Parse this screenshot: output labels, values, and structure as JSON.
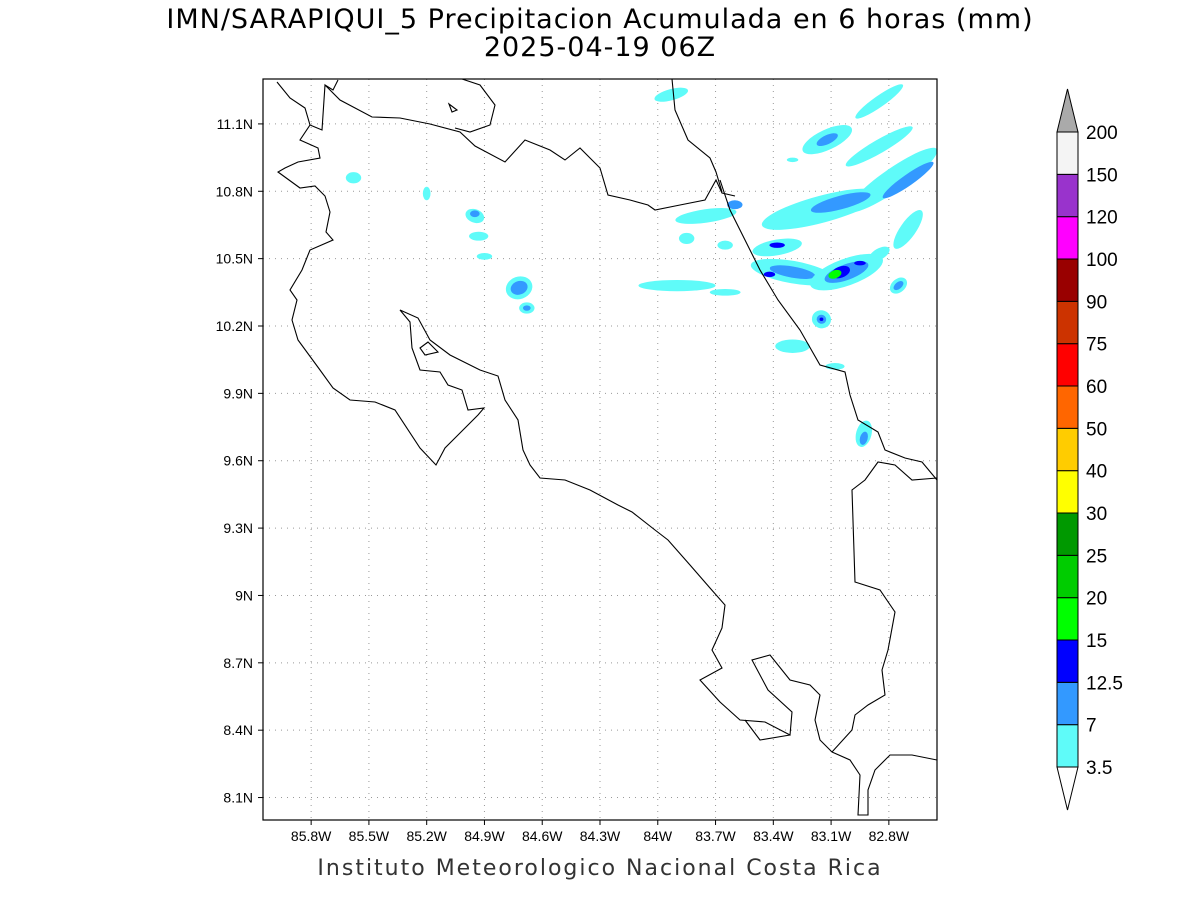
{
  "title": {
    "line1": "IMN/SARAPIQUI_5 Precipitacion Acumulada en 6 horas (mm)",
    "line2": "2025-04-19 06Z"
  },
  "footer": "Instituto Meteorologico Nacional Costa Rica",
  "map": {
    "lon_range": [
      -86.05,
      -82.55
    ],
    "lat_range": [
      8.0,
      11.3
    ],
    "x_ticks": [
      {
        "value": -85.8,
        "label": "85.8W"
      },
      {
        "value": -85.5,
        "label": "85.5W"
      },
      {
        "value": -85.2,
        "label": "85.2W"
      },
      {
        "value": -84.9,
        "label": "84.9W"
      },
      {
        "value": -84.6,
        "label": "84.6W"
      },
      {
        "value": -84.3,
        "label": "84.3W"
      },
      {
        "value": -84.0,
        "label": "84W"
      },
      {
        "value": -83.7,
        "label": "83.7W"
      },
      {
        "value": -83.4,
        "label": "83.4W"
      },
      {
        "value": -83.1,
        "label": "83.1W"
      },
      {
        "value": -82.8,
        "label": "82.8W"
      }
    ],
    "y_ticks": [
      {
        "value": 11.1,
        "label": "11.1N"
      },
      {
        "value": 10.8,
        "label": "10.8N"
      },
      {
        "value": 10.5,
        "label": "10.5N"
      },
      {
        "value": 10.2,
        "label": "10.2N"
      },
      {
        "value": 9.9,
        "label": "9.9N"
      },
      {
        "value": 9.6,
        "label": "9.6N"
      },
      {
        "value": 9.3,
        "label": "9.3N"
      },
      {
        "value": 9.0,
        "label": "9N"
      },
      {
        "value": 8.7,
        "label": "8.7N"
      },
      {
        "value": 8.4,
        "label": "8.4N"
      },
      {
        "value": 8.1,
        "label": "8.1N"
      }
    ],
    "grid": "dotted",
    "coastline_color": "#000000"
  },
  "colorbar": {
    "levels": [
      "3.5",
      "7",
      "12.5",
      "15",
      "20",
      "25",
      "30",
      "40",
      "50",
      "60",
      "75",
      "90",
      "100",
      "120",
      "150",
      "200"
    ],
    "colors": [
      "#5ffbf9",
      "#3399ff",
      "#0000ff",
      "#00ff00",
      "#00cc00",
      "#009900",
      "#ffff00",
      "#ffcc00",
      "#ff6600",
      "#ff0000",
      "#cc3300",
      "#990000",
      "#ff00ff",
      "#9933cc",
      "#f4f4f4",
      "#aaaaaa"
    ]
  },
  "precip_cells": [
    {
      "lon": -83.93,
      "lat": 11.23,
      "rx": 0.09,
      "ry": 0.025,
      "angle": -15,
      "level": 0
    },
    {
      "lon": -83.12,
      "lat": 11.03,
      "rx": 0.14,
      "ry": 0.045,
      "angle": -25,
      "level": 0
    },
    {
      "lon": -83.12,
      "lat": 11.03,
      "rx": 0.06,
      "ry": 0.02,
      "angle": -25,
      "level": 1
    },
    {
      "lon": -82.85,
      "lat": 11.0,
      "rx": 0.2,
      "ry": 0.03,
      "angle": -30,
      "level": 0
    },
    {
      "lon": -82.85,
      "lat": 11.2,
      "rx": 0.15,
      "ry": 0.025,
      "angle": -35,
      "level": 0
    },
    {
      "lon": -82.78,
      "lat": 10.85,
      "rx": 0.28,
      "ry": 0.05,
      "angle": -35,
      "level": 0
    },
    {
      "lon": -82.7,
      "lat": 10.85,
      "rx": 0.16,
      "ry": 0.025,
      "angle": -35,
      "level": 1
    },
    {
      "lon": -83.15,
      "lat": 10.72,
      "rx": 0.32,
      "ry": 0.06,
      "angle": -15,
      "level": 0
    },
    {
      "lon": -83.05,
      "lat": 10.75,
      "rx": 0.16,
      "ry": 0.03,
      "angle": -15,
      "level": 1
    },
    {
      "lon": -82.7,
      "lat": 10.63,
      "rx": 0.12,
      "ry": 0.035,
      "angle": -55,
      "level": 0
    },
    {
      "lon": -83.75,
      "lat": 10.69,
      "rx": 0.16,
      "ry": 0.03,
      "angle": -8,
      "level": 0
    },
    {
      "lon": -83.38,
      "lat": 10.55,
      "rx": 0.13,
      "ry": 0.035,
      "angle": -10,
      "level": 0
    },
    {
      "lon": -83.38,
      "lat": 10.56,
      "rx": 0.04,
      "ry": 0.012,
      "angle": 0,
      "level": 2
    },
    {
      "lon": -83.3,
      "lat": 10.44,
      "rx": 0.22,
      "ry": 0.05,
      "angle": 10,
      "level": 0
    },
    {
      "lon": -83.3,
      "lat": 10.44,
      "rx": 0.12,
      "ry": 0.025,
      "angle": 10,
      "level": 1
    },
    {
      "lon": -83.42,
      "lat": 10.43,
      "rx": 0.03,
      "ry": 0.012,
      "angle": 0,
      "level": 2
    },
    {
      "lon": -83.02,
      "lat": 10.44,
      "rx": 0.2,
      "ry": 0.06,
      "angle": -20,
      "level": 0
    },
    {
      "lon": -83.02,
      "lat": 10.44,
      "rx": 0.12,
      "ry": 0.035,
      "angle": -20,
      "level": 1
    },
    {
      "lon": -83.05,
      "lat": 10.44,
      "rx": 0.05,
      "ry": 0.025,
      "angle": -20,
      "level": 2
    },
    {
      "lon": -83.08,
      "lat": 10.43,
      "rx": 0.035,
      "ry": 0.018,
      "angle": -20,
      "level": 3
    },
    {
      "lon": -82.95,
      "lat": 10.48,
      "rx": 0.03,
      "ry": 0.01,
      "angle": 0,
      "level": 2
    },
    {
      "lon": -82.75,
      "lat": 10.38,
      "rx": 0.05,
      "ry": 0.03,
      "angle": -40,
      "level": 0
    },
    {
      "lon": -82.75,
      "lat": 10.38,
      "rx": 0.03,
      "ry": 0.015,
      "angle": -40,
      "level": 1
    },
    {
      "lon": -83.9,
      "lat": 10.38,
      "rx": 0.2,
      "ry": 0.025,
      "angle": 0,
      "level": 0
    },
    {
      "lon": -83.65,
      "lat": 10.35,
      "rx": 0.08,
      "ry": 0.015,
      "angle": 0,
      "level": 0
    },
    {
      "lon": -84.72,
      "lat": 10.37,
      "rx": 0.07,
      "ry": 0.05,
      "angle": -20,
      "level": 0
    },
    {
      "lon": -84.72,
      "lat": 10.37,
      "rx": 0.045,
      "ry": 0.03,
      "angle": -20,
      "level": 1
    },
    {
      "lon": -84.68,
      "lat": 10.28,
      "rx": 0.04,
      "ry": 0.025,
      "angle": 0,
      "level": 0
    },
    {
      "lon": -84.68,
      "lat": 10.28,
      "rx": 0.02,
      "ry": 0.012,
      "angle": 0,
      "level": 1
    },
    {
      "lon": -84.9,
      "lat": 10.51,
      "rx": 0.04,
      "ry": 0.015,
      "angle": 0,
      "level": 0
    },
    {
      "lon": -84.95,
      "lat": 10.69,
      "rx": 0.05,
      "ry": 0.03,
      "angle": 20,
      "level": 0
    },
    {
      "lon": -84.95,
      "lat": 10.7,
      "rx": 0.025,
      "ry": 0.015,
      "angle": 0,
      "level": 1
    },
    {
      "lon": -84.93,
      "lat": 10.6,
      "rx": 0.05,
      "ry": 0.02,
      "angle": 0,
      "level": 0
    },
    {
      "lon": -85.58,
      "lat": 10.86,
      "rx": 0.04,
      "ry": 0.025,
      "angle": 0,
      "level": 0
    },
    {
      "lon": -85.2,
      "lat": 10.79,
      "rx": 0.02,
      "ry": 0.03,
      "angle": 0,
      "level": 0
    },
    {
      "lon": -83.15,
      "lat": 10.23,
      "rx": 0.05,
      "ry": 0.04,
      "angle": 20,
      "level": 0
    },
    {
      "lon": -83.15,
      "lat": 10.23,
      "rx": 0.025,
      "ry": 0.02,
      "angle": 20,
      "level": 1
    },
    {
      "lon": -83.15,
      "lat": 10.23,
      "rx": 0.01,
      "ry": 0.008,
      "angle": 0,
      "level": 2
    },
    {
      "lon": -83.3,
      "lat": 10.11,
      "rx": 0.09,
      "ry": 0.03,
      "angle": 0,
      "level": 0
    },
    {
      "lon": -83.08,
      "lat": 10.02,
      "rx": 0.05,
      "ry": 0.015,
      "angle": 0,
      "level": 0
    },
    {
      "lon": -82.93,
      "lat": 9.72,
      "rx": 0.04,
      "ry": 0.06,
      "angle": 15,
      "level": 0
    },
    {
      "lon": -82.93,
      "lat": 9.7,
      "rx": 0.02,
      "ry": 0.03,
      "angle": 15,
      "level": 1
    },
    {
      "lon": -83.65,
      "lat": 10.56,
      "rx": 0.04,
      "ry": 0.02,
      "angle": 0,
      "level": 0
    },
    {
      "lon": -83.85,
      "lat": 10.59,
      "rx": 0.04,
      "ry": 0.025,
      "angle": 0,
      "level": 0
    },
    {
      "lon": -83.3,
      "lat": 10.94,
      "rx": 0.03,
      "ry": 0.01,
      "angle": 0,
      "level": 0
    },
    {
      "lon": -82.85,
      "lat": 10.52,
      "rx": 0.06,
      "ry": 0.025,
      "angle": -30,
      "level": 0
    },
    {
      "lon": -83.6,
      "lat": 10.74,
      "rx": 0.04,
      "ry": 0.02,
      "angle": 0,
      "level": 1
    }
  ]
}
